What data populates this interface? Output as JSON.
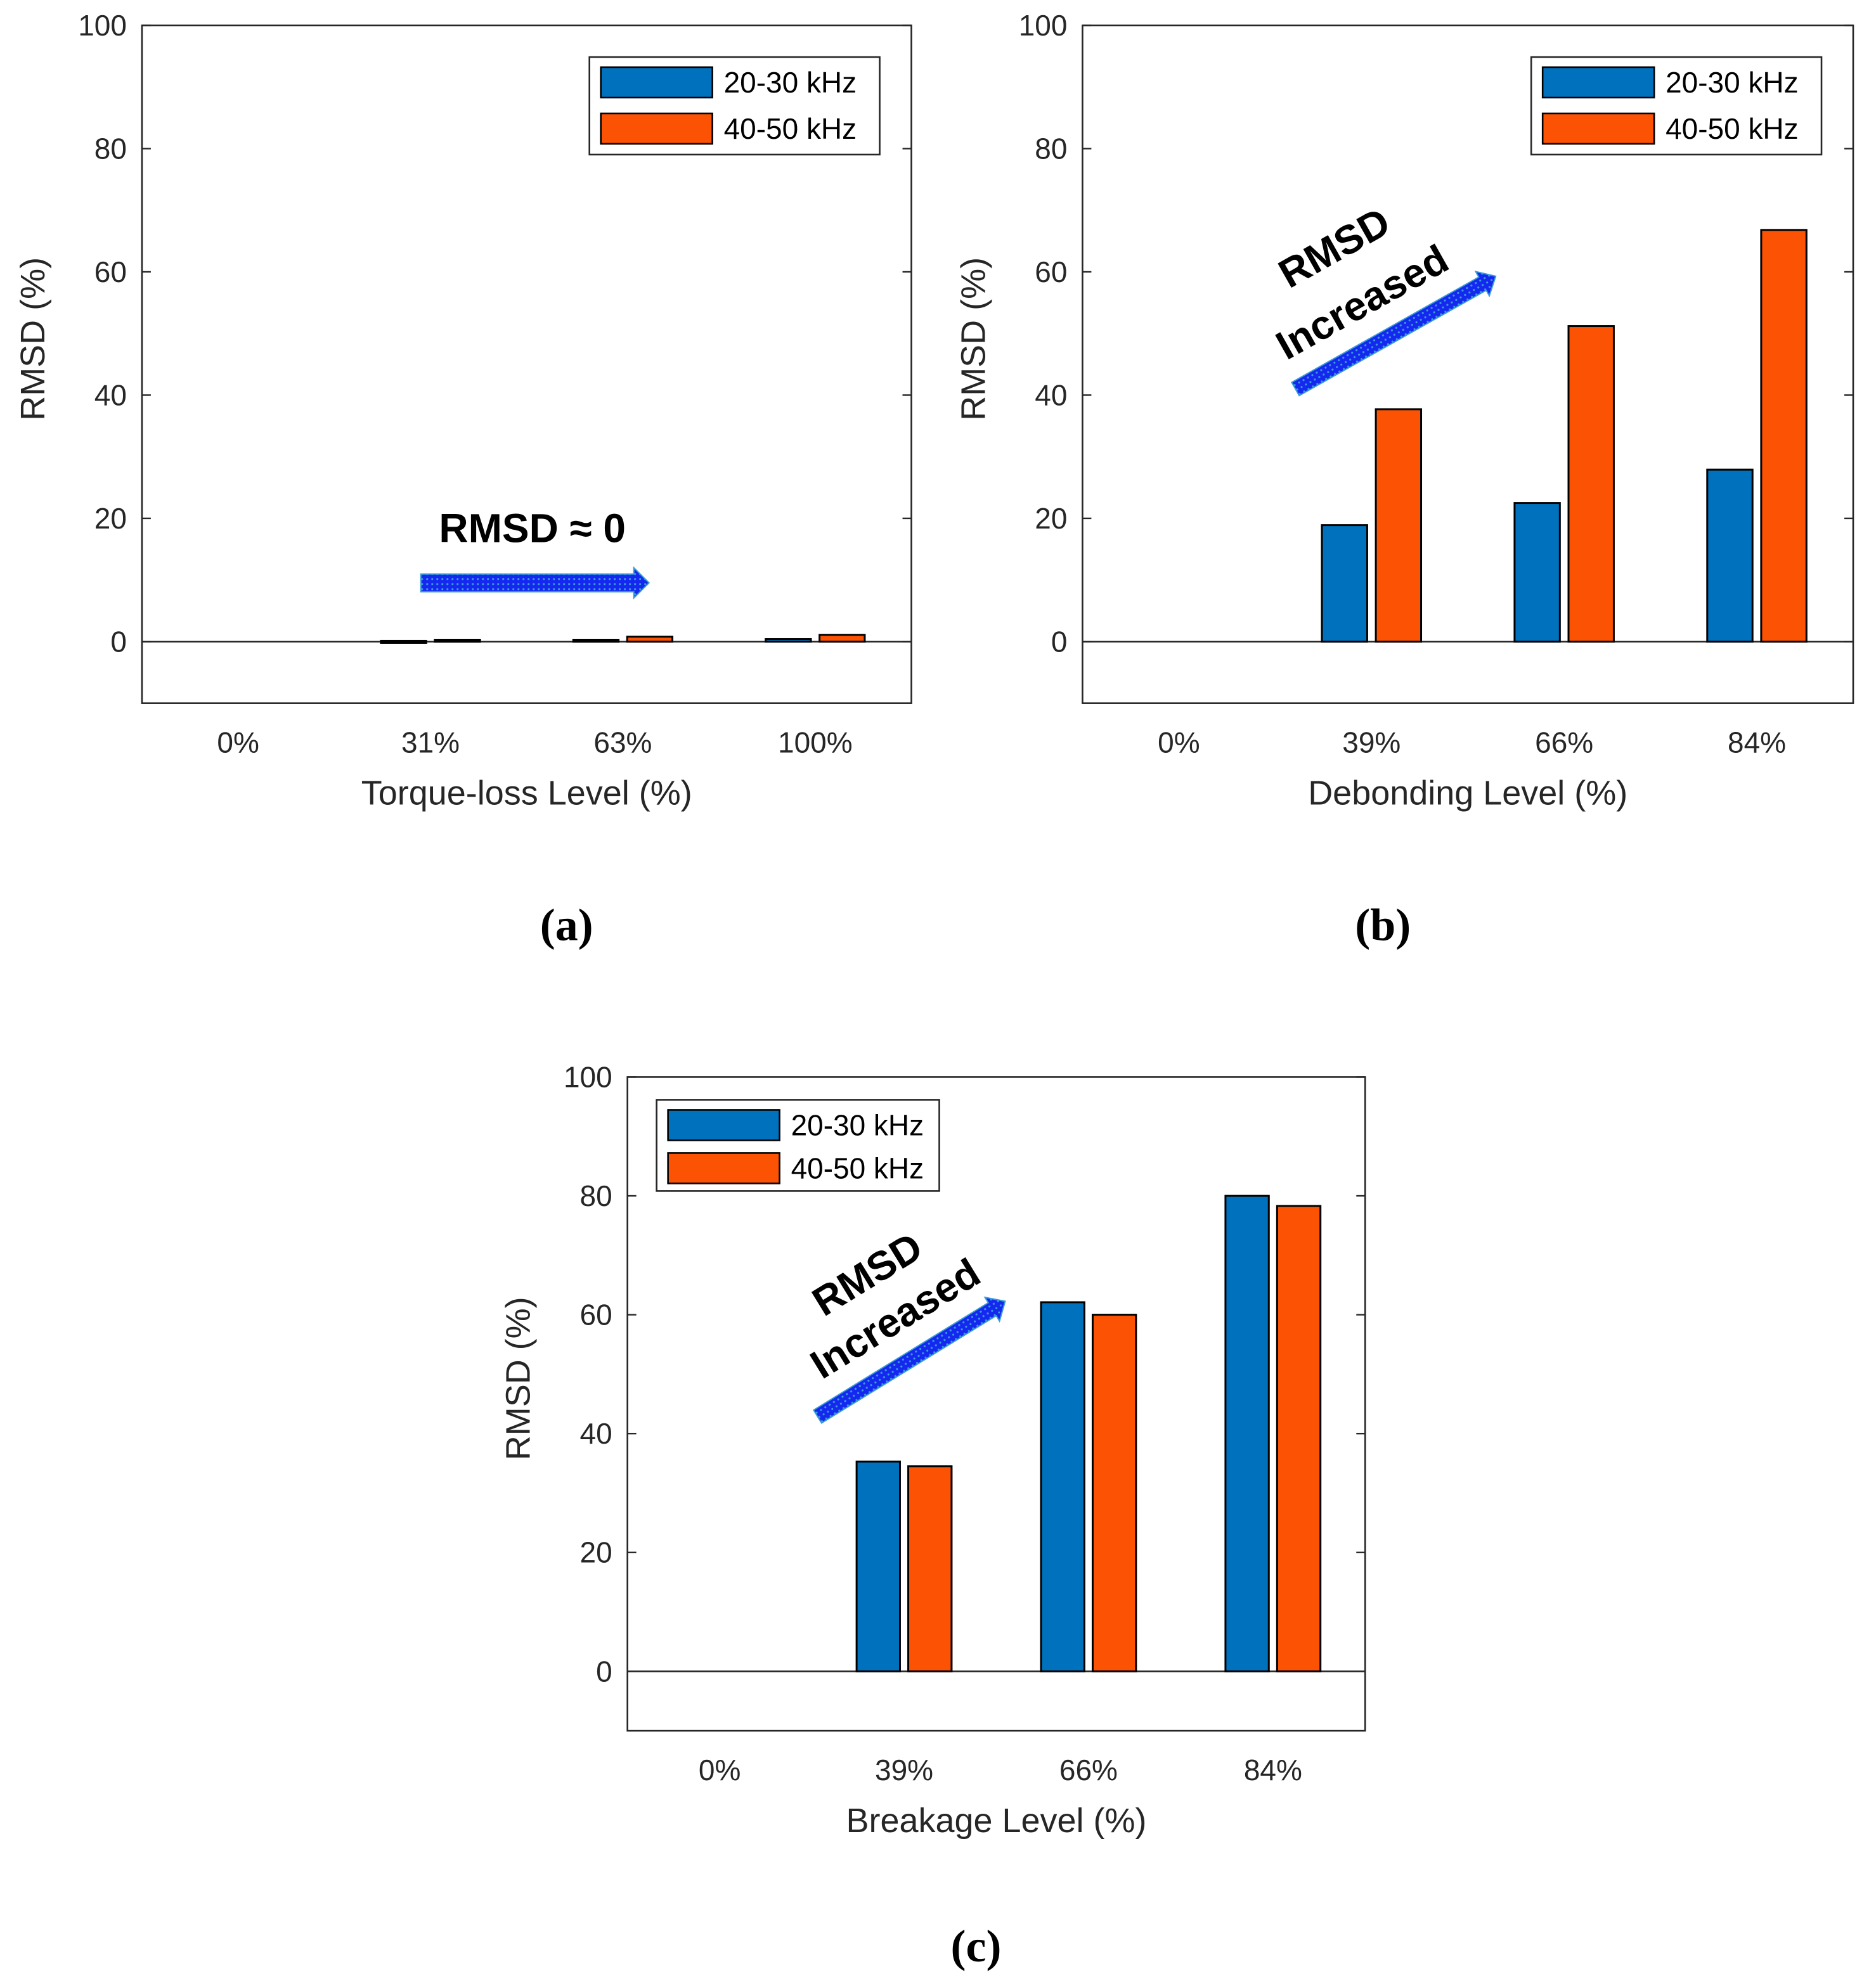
{
  "colors": {
    "series_1": "#0072BD",
    "series_2": "#FC5203",
    "arrow": "#1428F0"
  },
  "chart_data": [
    {
      "type": "bar",
      "panel_label": "(a)",
      "xlabel": "Torque-loss Level (%)",
      "ylabel": "RMSD (%)",
      "categories": [
        "0%",
        "31%",
        "63%",
        "100%"
      ],
      "ylim": [
        -10,
        100
      ],
      "yticks": [
        0,
        20,
        40,
        60,
        80,
        100
      ],
      "legend_position": "top-right",
      "series": [
        {
          "name": "20-30 kHz",
          "values": [
            0,
            0.1,
            0.3,
            0.4
          ]
        },
        {
          "name": "40-50 kHz",
          "values": [
            0,
            0.3,
            0.8,
            1.1
          ]
        }
      ],
      "annotations": [
        {
          "text": "RMSD ≈ 0",
          "arrow": "horizontal"
        }
      ]
    },
    {
      "type": "bar",
      "panel_label": "(b)",
      "xlabel": "Debonding Level (%)",
      "ylabel": "RMSD (%)",
      "categories": [
        "0%",
        "39%",
        "66%",
        "84%"
      ],
      "ylim": [
        -10,
        100
      ],
      "yticks": [
        0,
        20,
        40,
        60,
        80,
        100
      ],
      "legend_position": "top-right",
      "series": [
        {
          "name": "20-30 kHz",
          "values": [
            0,
            18.9,
            22.5,
            27.9
          ]
        },
        {
          "name": "40-50 kHz",
          "values": [
            0,
            37.7,
            51.2,
            66.8
          ]
        }
      ],
      "annotations": [
        {
          "text": "RMSD",
          "text2": "Increased",
          "arrow": "diagonal"
        }
      ]
    },
    {
      "type": "bar",
      "panel_label": "(c)",
      "xlabel": "Breakage Level (%)",
      "ylabel": "RMSD (%)",
      "categories": [
        "0%",
        "39%",
        "66%",
        "84%"
      ],
      "ylim": [
        -10,
        100
      ],
      "yticks": [
        0,
        20,
        40,
        60,
        80,
        100
      ],
      "legend_position": "top-left",
      "series": [
        {
          "name": "20-30 kHz",
          "values": [
            0,
            35.3,
            62.1,
            80.0
          ]
        },
        {
          "name": "40-50 kHz",
          "values": [
            0,
            34.5,
            60.0,
            78.3
          ]
        }
      ],
      "annotations": [
        {
          "text": "RMSD",
          "text2": "Increased",
          "arrow": "diagonal"
        }
      ]
    }
  ]
}
